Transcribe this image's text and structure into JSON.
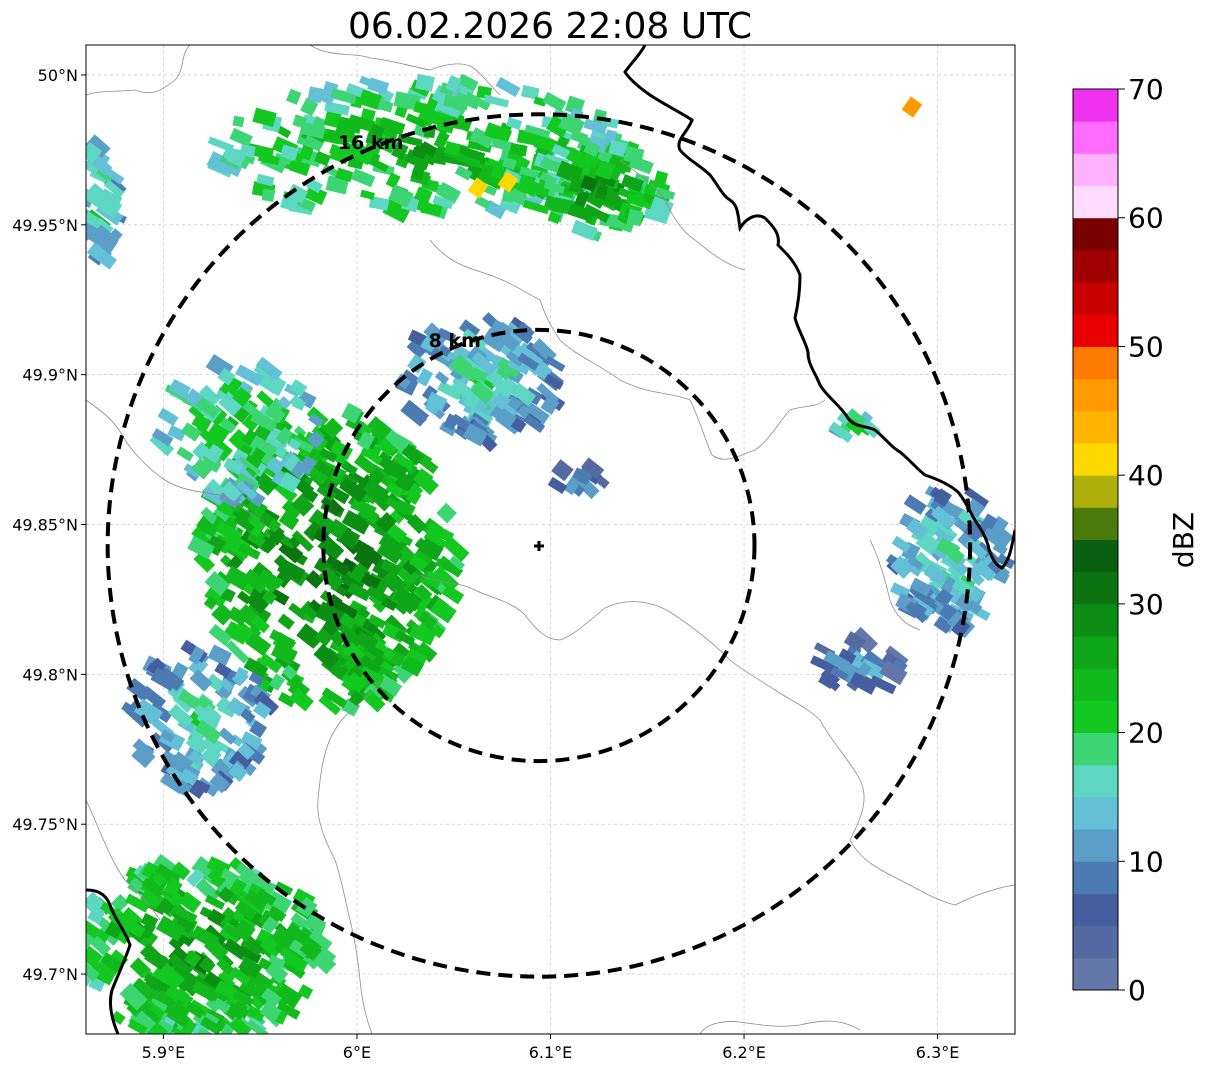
{
  "title": "06.02.2026 22:08 UTC",
  "axes": {
    "x_ticks": [
      "5.9°E",
      "6°E",
      "6.1°E",
      "6.2°E",
      "6.3°E"
    ],
    "y_ticks": [
      "49.7°N",
      "49.75°N",
      "49.8°N",
      "49.85°N",
      "49.9°N",
      "49.95°N",
      "50°N"
    ],
    "x_tick_values": [
      5.9,
      6.0,
      6.1,
      6.2,
      6.3
    ],
    "y_tick_values": [
      49.7,
      49.75,
      49.8,
      49.85,
      49.9,
      49.95,
      50.0
    ],
    "lon_range": [
      5.86,
      6.34
    ],
    "lat_range": [
      49.68,
      50.01
    ]
  },
  "radar": {
    "center_lon": 6.094,
    "center_lat": 49.843,
    "rings": [
      {
        "label": "8 km",
        "radius_km": 8
      },
      {
        "label": "16 km",
        "radius_km": 16
      }
    ]
  },
  "colorbar": {
    "label": "dBZ",
    "ticks": [
      "0",
      "10",
      "20",
      "30",
      "40",
      "50",
      "60",
      "70"
    ],
    "min": 0,
    "max": 70,
    "step": 2.5,
    "colors": [
      "#6377a8",
      "#536aa2",
      "#455ea0",
      "#4c7bb3",
      "#5b9ec7",
      "#63c0d6",
      "#5dd6c2",
      "#3dd474",
      "#13c821",
      "#12b91c",
      "#0fa518",
      "#0c8d14",
      "#0b7410",
      "#096010",
      "#4a7a0a",
      "#adb00a",
      "#ffd800",
      "#ffb400",
      "#ff9a00",
      "#ff7a00",
      "#e80000",
      "#c80000",
      "#a00000",
      "#780000",
      "#ffdcff",
      "#ffb2ff",
      "#ff6cff",
      "#f032f0"
    ]
  },
  "colors": {
    "border_thick": "#000000",
    "border_thin": "#8c8c8c",
    "grid": "#c0c0c0"
  }
}
